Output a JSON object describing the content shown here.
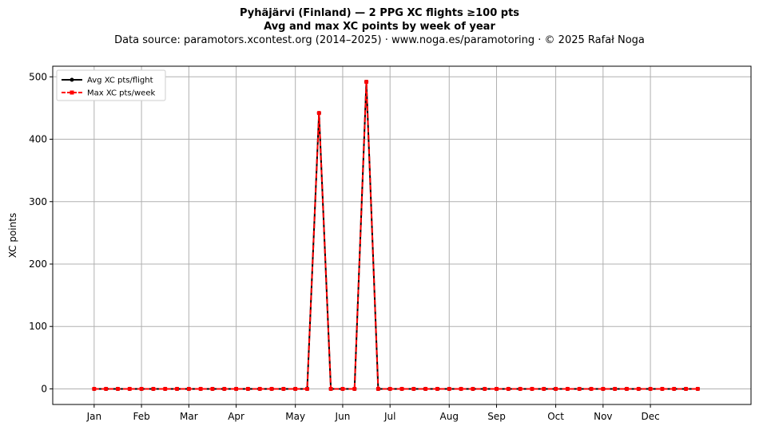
{
  "chart_data": {
    "type": "line",
    "title": "Pyhäjärvi (Finland)  —  2 PPG XC flights ≥100 pts",
    "subtitle": "Avg and max XC points by week of year",
    "source_line": "Data source: paramotors.xcontest.org (2014–2025)  ·  www.noga.es/paramotoring  ·  © 2025 Rafał Noga",
    "xlabel": "",
    "ylabel": "XC points",
    "xlim": [
      -2.5,
      56.5
    ],
    "ylim": [
      -25,
      517
    ],
    "yticks": [
      0,
      100,
      200,
      300,
      400,
      500
    ],
    "month_ticks": [
      {
        "label": "Jan",
        "week": 1
      },
      {
        "label": "Feb",
        "week": 5
      },
      {
        "label": "Mar",
        "week": 9
      },
      {
        "label": "Apr",
        "week": 13
      },
      {
        "label": "May",
        "week": 18
      },
      {
        "label": "Jun",
        "week": 22
      },
      {
        "label": "Jul",
        "week": 26
      },
      {
        "label": "Aug",
        "week": 31
      },
      {
        "label": "Sep",
        "week": 35
      },
      {
        "label": "Oct",
        "week": 40
      },
      {
        "label": "Nov",
        "week": 44
      },
      {
        "label": "Dec",
        "week": 48
      }
    ],
    "grid": true,
    "legend_position": "top-left",
    "x": [
      1,
      2,
      3,
      4,
      5,
      6,
      7,
      8,
      9,
      10,
      11,
      12,
      13,
      14,
      15,
      16,
      17,
      18,
      19,
      20,
      21,
      22,
      23,
      24,
      25,
      26,
      27,
      28,
      29,
      30,
      31,
      32,
      33,
      34,
      35,
      36,
      37,
      38,
      39,
      40,
      41,
      42,
      43,
      44,
      45,
      46,
      47,
      48,
      49,
      50,
      51,
      52
    ],
    "series": [
      {
        "name": "Avg XC pts/flight",
        "color": "#000000",
        "style": "solid",
        "marker": "circle",
        "values": [
          0,
          0,
          0,
          0,
          0,
          0,
          0,
          0,
          0,
          0,
          0,
          0,
          0,
          0,
          0,
          0,
          0,
          0,
          0,
          442,
          0,
          0,
          0,
          492,
          0,
          0,
          0,
          0,
          0,
          0,
          0,
          0,
          0,
          0,
          0,
          0,
          0,
          0,
          0,
          0,
          0,
          0,
          0,
          0,
          0,
          0,
          0,
          0,
          0,
          0,
          0,
          0
        ]
      },
      {
        "name": "Max XC pts/week",
        "color": "#ff0000",
        "style": "dashed",
        "marker": "square",
        "values": [
          0,
          0,
          0,
          0,
          0,
          0,
          0,
          0,
          0,
          0,
          0,
          0,
          0,
          0,
          0,
          0,
          0,
          0,
          0,
          442,
          0,
          0,
          0,
          492,
          0,
          0,
          0,
          0,
          0,
          0,
          0,
          0,
          0,
          0,
          0,
          0,
          0,
          0,
          0,
          0,
          0,
          0,
          0,
          0,
          0,
          0,
          0,
          0,
          0,
          0,
          0,
          0
        ]
      }
    ]
  }
}
